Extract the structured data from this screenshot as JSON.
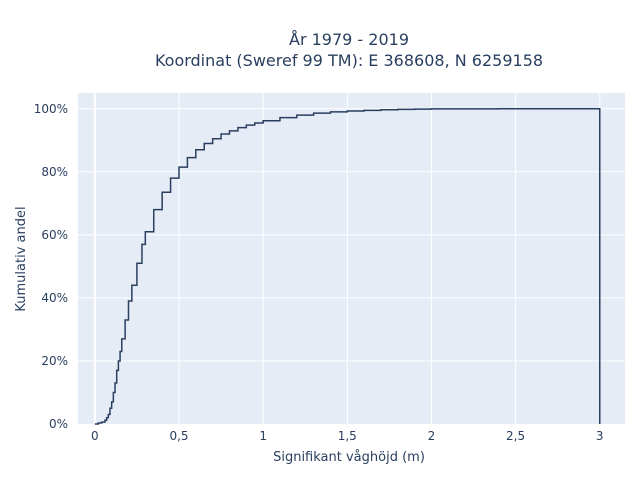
{
  "title": {
    "line1": "År 1979 - 2019",
    "line2": "Koordinat (Sweref 99 TM): E 368608, N 6259158"
  },
  "chart_data": {
    "type": "line",
    "line_shape": "step",
    "xlabel": "Signifikant våghöjd (m)",
    "ylabel": "Kumulativ andel",
    "xlim": [
      -0.1,
      3.15
    ],
    "ylim": [
      0,
      1.05
    ],
    "x_ticks": [
      0,
      0.5,
      1,
      1.5,
      2,
      2.5,
      3
    ],
    "x_tick_labels": [
      "0",
      "0,5",
      "1",
      "1,5",
      "2",
      "2,5",
      "3"
    ],
    "y_ticks": [
      0,
      0.2,
      0.4,
      0.6,
      0.8,
      1.0
    ],
    "y_tick_labels": [
      "0%",
      "20%",
      "40%",
      "60%",
      "80%",
      "100%"
    ],
    "grid": true,
    "colors": {
      "plot_bg": "#e5ecf6",
      "line": "#2a3f5f"
    },
    "series": [
      {
        "x": [
          0,
          0.02,
          0.04,
          0.06,
          0.07,
          0.08,
          0.09,
          0.1,
          0.11,
          0.12,
          0.13,
          0.14,
          0.15,
          0.16,
          0.18,
          0.2,
          0.22,
          0.25,
          0.28,
          0.3,
          0.35,
          0.4,
          0.45,
          0.5,
          0.55,
          0.6,
          0.65,
          0.7,
          0.75,
          0.8,
          0.85,
          0.9,
          0.95,
          1.0,
          1.1,
          1.2,
          1.3,
          1.4,
          1.5,
          1.6,
          1.7,
          1.8,
          1.9,
          2.0,
          2.2,
          2.4,
          2.6,
          2.8,
          3.0,
          3.0
        ],
        "y": [
          0,
          0.003,
          0.006,
          0.012,
          0.02,
          0.03,
          0.05,
          0.07,
          0.1,
          0.13,
          0.17,
          0.2,
          0.23,
          0.27,
          0.33,
          0.39,
          0.44,
          0.51,
          0.57,
          0.61,
          0.68,
          0.735,
          0.78,
          0.815,
          0.845,
          0.87,
          0.89,
          0.905,
          0.92,
          0.93,
          0.94,
          0.948,
          0.955,
          0.962,
          0.972,
          0.98,
          0.986,
          0.99,
          0.993,
          0.995,
          0.997,
          0.998,
          0.999,
          0.9995,
          0.9998,
          0.9999,
          1.0,
          1.0,
          1.0,
          0
        ]
      }
    ]
  }
}
